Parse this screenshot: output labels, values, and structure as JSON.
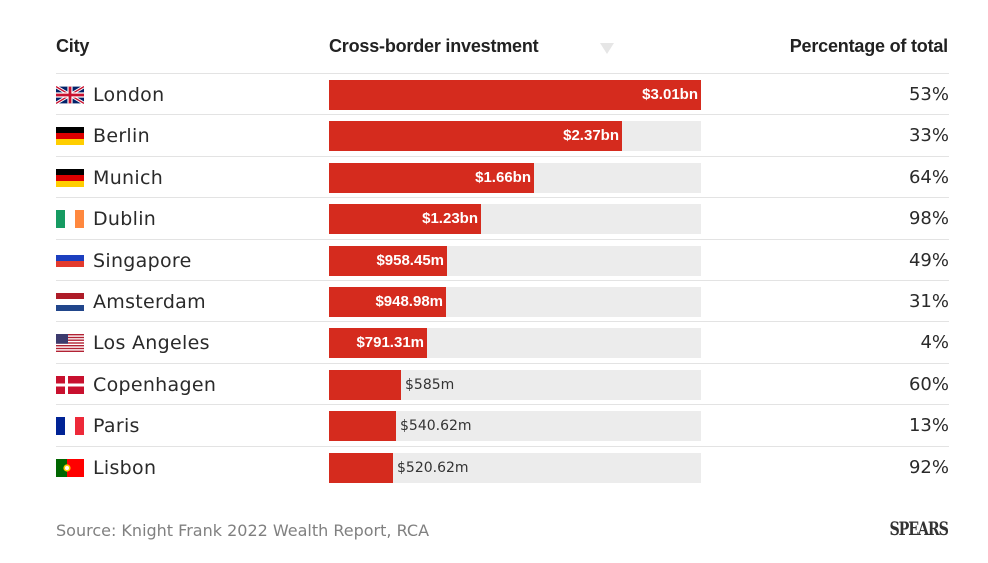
{
  "chart_data": {
    "type": "bar",
    "orientation": "horizontal",
    "title": "",
    "columns": [
      "City",
      "Cross-border investment",
      "Percentage of total"
    ],
    "sort": {
      "column": "Cross-border investment",
      "direction": "descending"
    },
    "categories": [
      "London",
      "Berlin",
      "Munich",
      "Dublin",
      "Singapore",
      "Amsterdam",
      "Los Angeles",
      "Copenhagen",
      "Paris",
      "Lisbon"
    ],
    "values_usd_millions": [
      3010,
      2370,
      1660,
      1230,
      958.45,
      948.98,
      791.31,
      585,
      540.62,
      520.62
    ],
    "value_labels": [
      "$3.01bn",
      "$2.37bn",
      "$1.66bn",
      "$1.23bn",
      "$958.45m",
      "$948.98m",
      "$791.31m",
      "$585m",
      "$540.62m",
      "$520.62m"
    ],
    "percentage_of_total": [
      "53%",
      "33%",
      "64%",
      "98%",
      "49%",
      "31%",
      "4%",
      "60%",
      "13%",
      "92%"
    ],
    "xlim": [
      0,
      3010
    ],
    "bar_color": "#d52b1e",
    "track_color": "#ececec",
    "source": "Source: Knight Frank 2022 Wealth Report, RCA"
  },
  "header": {
    "city": "City",
    "investment": "Cross-border investment",
    "percentage": "Percentage of total"
  },
  "rows": [
    {
      "city": "London",
      "flag": "uk-flag",
      "label": "$3.01bn",
      "value": 3010,
      "pct": "53%"
    },
    {
      "city": "Berlin",
      "flag": "germany-flag",
      "label": "$2.37bn",
      "value": 2370,
      "pct": "33%"
    },
    {
      "city": "Munich",
      "flag": "germany-flag",
      "label": "$1.66bn",
      "value": 1660,
      "pct": "64%"
    },
    {
      "city": "Dublin",
      "flag": "ireland-flag",
      "label": "$1.23bn",
      "value": 1230,
      "pct": "98%"
    },
    {
      "city": "Singapore",
      "flag": "singapore-flag",
      "label": "$958.45m",
      "value": 958.45,
      "pct": "49%"
    },
    {
      "city": "Amsterdam",
      "flag": "netherlands-flag",
      "label": "$948.98m",
      "value": 948.98,
      "pct": "31%"
    },
    {
      "city": "Los Angeles",
      "flag": "usa-flag",
      "label": "$791.31m",
      "value": 791.31,
      "pct": "4%"
    },
    {
      "city": "Copenhagen",
      "flag": "denmark-flag",
      "label": "$585m",
      "value": 585,
      "pct": "60%"
    },
    {
      "city": "Paris",
      "flag": "france-flag",
      "label": "$540.62m",
      "value": 540.62,
      "pct": "13%"
    },
    {
      "city": "Lisbon",
      "flag": "portugal-flag",
      "label": "$520.62m",
      "value": 520.62,
      "pct": "92%"
    }
  ],
  "footer": {
    "source": "Source: Knight Frank 2022 Wealth Report, RCA",
    "logo": "SPEARS"
  }
}
